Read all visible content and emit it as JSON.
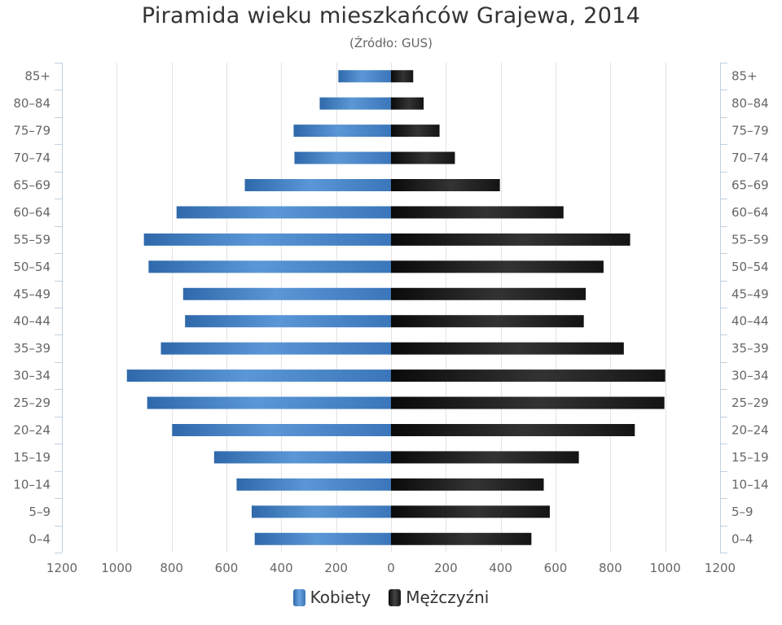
{
  "chart_data": {
    "type": "bar",
    "orientation": "horizontal",
    "layout": "population-pyramid",
    "title": "Piramida wieku mieszkańców Grajewa, 2014",
    "subtitle": "(Źródło: GUS)",
    "categories": [
      "0–4",
      "5–9",
      "10–14",
      "15–19",
      "20–24",
      "25–29",
      "30–34",
      "35–39",
      "40–44",
      "45–49",
      "50–54",
      "55–59",
      "60–64",
      "65–69",
      "70–74",
      "75–79",
      "80–84",
      "85+"
    ],
    "series": [
      {
        "name": "Kobiety",
        "side": "left",
        "color": "#4a86c8",
        "values": [
          497,
          508,
          563,
          645,
          798,
          889,
          963,
          839,
          751,
          758,
          884,
          901,
          782,
          533,
          352,
          355,
          260,
          192
        ]
      },
      {
        "name": "Mężczyźni",
        "side": "right",
        "color": "#222222",
        "values": [
          512,
          579,
          557,
          685,
          889,
          997,
          1000,
          849,
          703,
          710,
          775,
          872,
          629,
          397,
          233,
          177,
          119,
          81
        ]
      }
    ],
    "xlim": [
      -1200,
      1200
    ],
    "x_ticks": [
      -1200,
      -1000,
      -800,
      -600,
      -400,
      -200,
      0,
      200,
      400,
      600,
      800,
      1000,
      1200
    ],
    "x_tick_labels": [
      "1200",
      "1000",
      "800",
      "600",
      "400",
      "200",
      "0",
      "200",
      "400",
      "600",
      "800",
      "1000",
      "1200"
    ],
    "grid": true,
    "legend": "bottom-center"
  }
}
